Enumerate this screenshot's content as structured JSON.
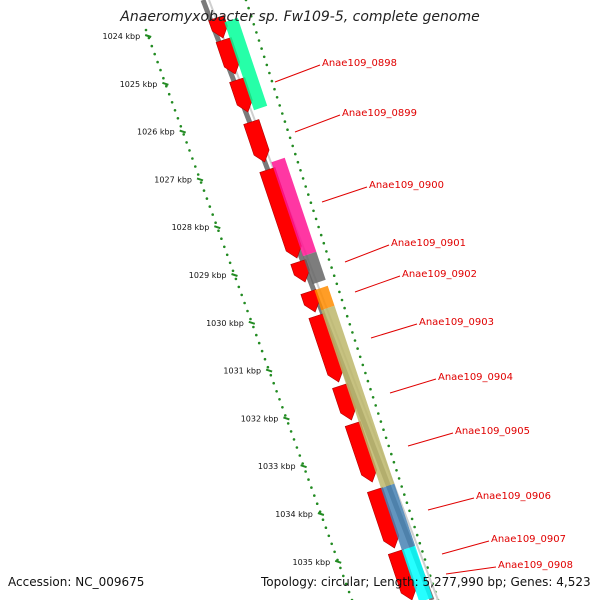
{
  "title": "Anaeromyxobacter sp. Fw109-5, complete genome",
  "footer": {
    "accession": "Accession: NC_009675",
    "info": "Topology: circular; Length: 5,277,990 bp; Genes: 4,523"
  },
  "ticks": [
    "1024 kbp",
    "1025 kbp",
    "1026 kbp",
    "1027 kbp",
    "1028 kbp",
    "1029 kbp",
    "1030 kbp",
    "1031 kbp",
    "1032 kbp",
    "1033 kbp",
    "1034 kbp",
    "1035 kbp"
  ],
  "genes": [
    {
      "label": "Anae109_0898",
      "color": "#00ff99",
      "strand": "forward"
    },
    {
      "label": "Anae109_0899",
      "color": "#ff0000",
      "strand": "forward"
    },
    {
      "label": "Anae109_0900",
      "color": "#ff1493",
      "strand": "forward"
    },
    {
      "label": "Anae109_0901",
      "color": "#666666",
      "strand": "forward"
    },
    {
      "label": "Anae109_0902",
      "color": "#ff8c00",
      "strand": "forward"
    },
    {
      "label": "Anae109_0903",
      "color": "#bdb76b",
      "strand": "forward"
    },
    {
      "label": "Anae109_0904",
      "color": "#bdb76b",
      "strand": "forward"
    },
    {
      "label": "Anae109_0905",
      "color": "#bdb76b",
      "strand": "forward"
    },
    {
      "label": "Anae109_0906",
      "color": "#4682b4",
      "strand": "forward"
    },
    {
      "label": "Anae109_0907",
      "color": "#00ffff",
      "strand": "forward"
    },
    {
      "label": "Anae109_0908",
      "color": "#ff0000",
      "strand": "forward"
    }
  ],
  "colors": {
    "backbone": "#808080",
    "cds": "#ff0000",
    "tick": "#228b22",
    "label": "#e00000"
  }
}
